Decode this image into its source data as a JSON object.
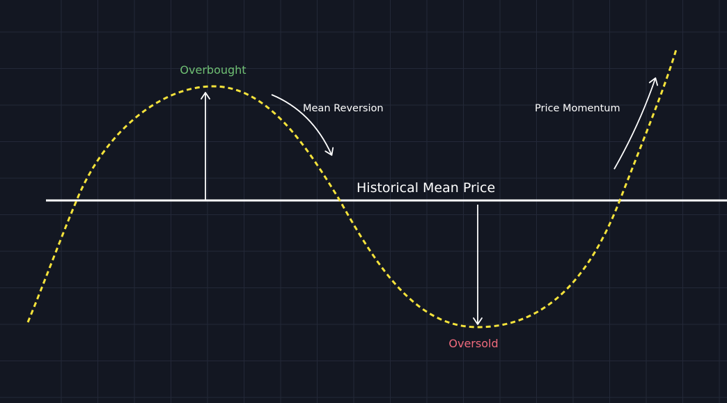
{
  "labels": {
    "overbought": "Overbought",
    "oversold": "Oversold",
    "mean_reversion": "Mean Reversion",
    "price_momentum": "Price Momentum",
    "historical_mean": "Historical Mean Price"
  },
  "colors": {
    "background": "#131722",
    "grid": "#232838",
    "price_curve": "#f5e33b",
    "mean_line": "#ffffff",
    "arrows": "#ffffff",
    "overbought": "#6fbf73",
    "oversold": "#f06b7d",
    "annotation_text": "#ffffff"
  },
  "price_curve_style": "dashed"
}
